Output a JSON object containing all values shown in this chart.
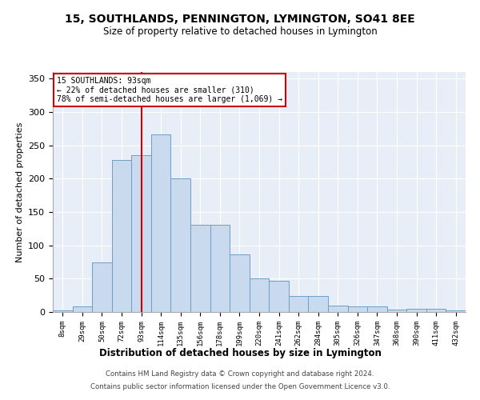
{
  "title": "15, SOUTHLANDS, PENNINGTON, LYMINGTON, SO41 8EE",
  "subtitle": "Size of property relative to detached houses in Lymington",
  "xlabel": "Distribution of detached houses by size in Lymington",
  "ylabel": "Number of detached properties",
  "categories": [
    "8sqm",
    "29sqm",
    "50sqm",
    "72sqm",
    "93sqm",
    "114sqm",
    "135sqm",
    "156sqm",
    "178sqm",
    "199sqm",
    "220sqm",
    "241sqm",
    "262sqm",
    "284sqm",
    "305sqm",
    "326sqm",
    "347sqm",
    "368sqm",
    "390sqm",
    "411sqm",
    "432sqm"
  ],
  "values": [
    2,
    8,
    75,
    228,
    235,
    267,
    200,
    131,
    131,
    87,
    50,
    47,
    24,
    24,
    10,
    9,
    8,
    4,
    5,
    5,
    2
  ],
  "bar_color": "#c9d9ee",
  "bar_edge_color": "#6b9ec8",
  "vline_color": "#cc0000",
  "annotation_text": "15 SOUTHLANDS: 93sqm\n← 22% of detached houses are smaller (310)\n78% of semi-detached houses are larger (1,069) →",
  "annotation_box_color": "#ffffff",
  "annotation_box_edge": "#cc0000",
  "ylim": [
    0,
    360
  ],
  "yticks": [
    0,
    50,
    100,
    150,
    200,
    250,
    300,
    350
  ],
  "background_color": "#e8eef7",
  "footer_line1": "Contains HM Land Registry data © Crown copyright and database right 2024.",
  "footer_line2": "Contains public sector information licensed under the Open Government Licence v3.0."
}
